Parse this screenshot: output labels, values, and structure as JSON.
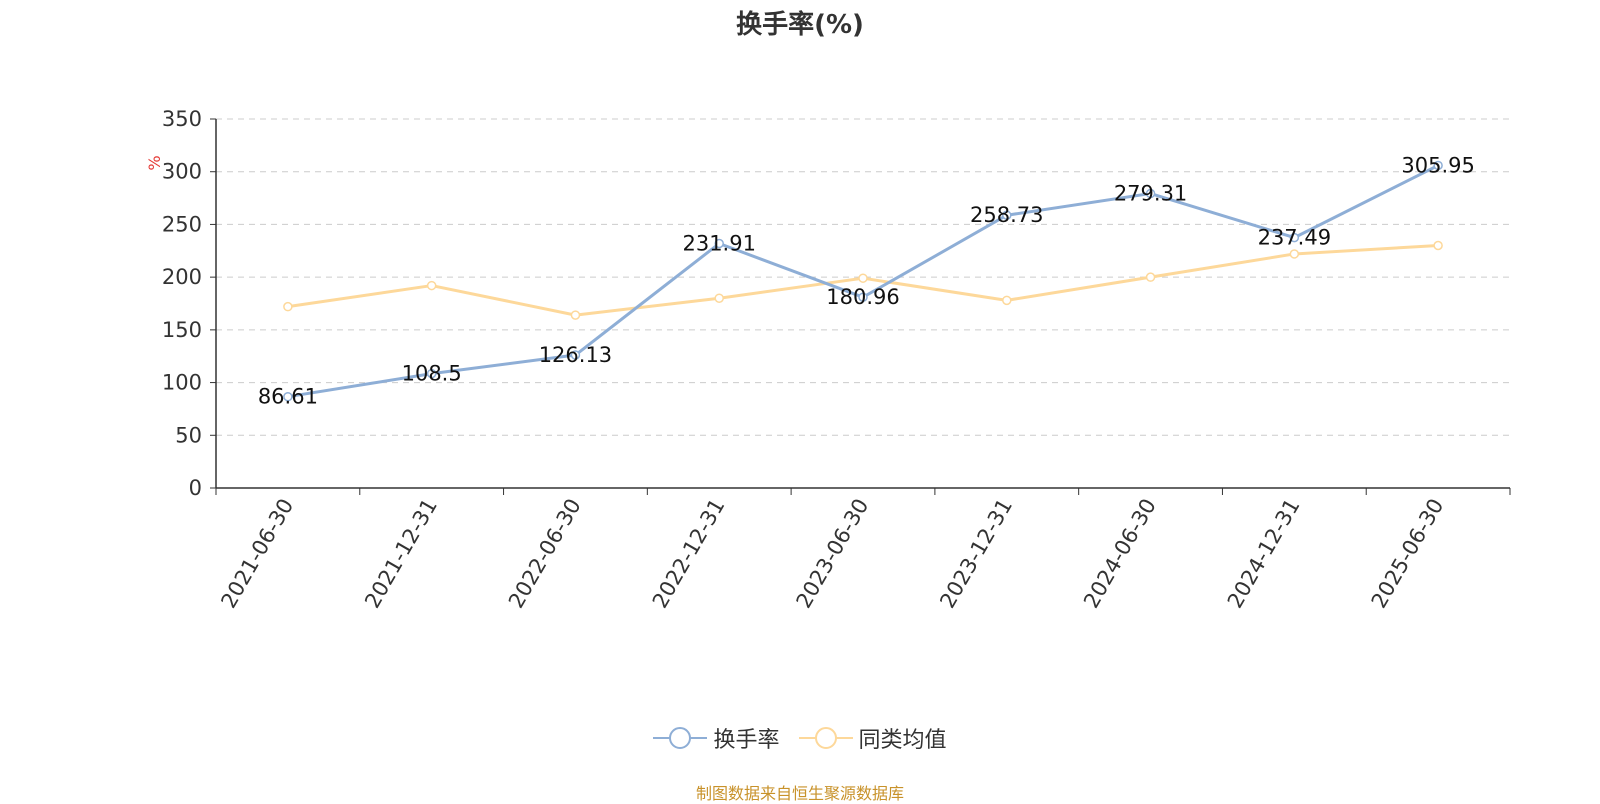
{
  "chart_data": {
    "type": "line",
    "title": "换手率(%)",
    "ylabel": "%",
    "xlabel": "",
    "categories": [
      "2021-06-30",
      "2021-12-31",
      "2022-06-30",
      "2022-12-31",
      "2023-06-30",
      "2023-12-31",
      "2024-06-30",
      "2024-12-31",
      "2025-06-30"
    ],
    "ylim": [
      0,
      350
    ],
    "yticks": [
      0,
      50,
      100,
      150,
      200,
      250,
      300,
      350
    ],
    "grid": true,
    "legend_position": "bottom",
    "series": [
      {
        "name": "换手率",
        "color": "#8eaed6",
        "values": [
          86.61,
          108.5,
          126.13,
          231.91,
          180.96,
          258.73,
          279.31,
          237.49,
          305.95
        ],
        "labels": [
          "86.61",
          "108.5",
          "126.13",
          "231.91",
          "180.96",
          "258.73",
          "279.31",
          "237.49",
          "305.95"
        ]
      },
      {
        "name": "同类均值",
        "color": "#fdd89a",
        "values": [
          172,
          192,
          164,
          180,
          199,
          178,
          200,
          222,
          230
        ]
      }
    ]
  },
  "source_note": "制图数据来自恒生聚源数据库",
  "colors": {
    "axis": "#333333",
    "grid": "#cccccc",
    "ylabel": "#e53935",
    "source": "#c8922a"
  }
}
